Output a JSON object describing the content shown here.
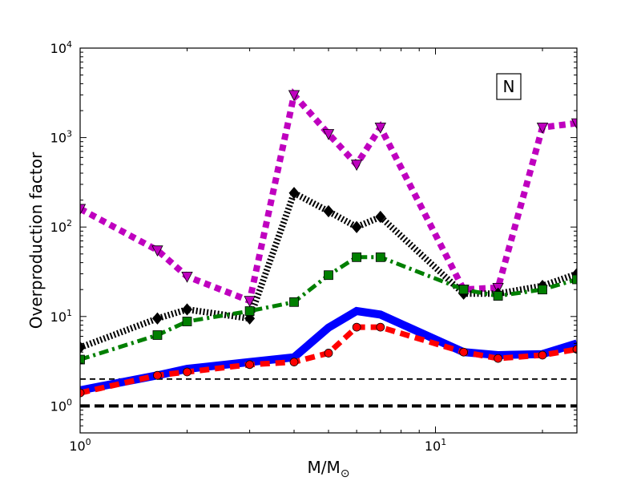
{
  "chart_data": {
    "type": "line",
    "xscale": "log",
    "yscale": "log",
    "xlim": [
      1,
      25
    ],
    "ylim": [
      0.5,
      10000
    ],
    "xlabel": "M/M",
    "xlabel_sub": "⊙",
    "ylabel": "Overproduction factor",
    "annotation": "N",
    "x_ticks": [
      {
        "value": 1,
        "base": "10",
        "exp": "0"
      },
      {
        "value": 10,
        "base": "10",
        "exp": "1"
      }
    ],
    "y_ticks": [
      {
        "value": 1,
        "base": "10",
        "exp": "0"
      },
      {
        "value": 10,
        "base": "10",
        "exp": "1"
      },
      {
        "value": 100,
        "base": "10",
        "exp": "2"
      },
      {
        "value": 1000,
        "base": "10",
        "exp": "3"
      },
      {
        "value": 10000,
        "base": "10",
        "exp": "4"
      }
    ],
    "reference_lines": [
      {
        "y": 1,
        "color": "#000000",
        "style": "thick-dashed"
      },
      {
        "y": 2,
        "color": "#000000",
        "style": "thin-dashed"
      }
    ],
    "series": [
      {
        "name": "magenta-triangles",
        "color": "#bf00bf",
        "style": "dotted",
        "marker": "triangle-down",
        "x": [
          1,
          1.65,
          2,
          3,
          4,
          5,
          6,
          7,
          12,
          15,
          20,
          25
        ],
        "y": [
          160,
          55,
          28,
          15,
          3000,
          1100,
          500,
          1300,
          20,
          21,
          1300,
          1450
        ]
      },
      {
        "name": "black-diamonds",
        "color": "#000000",
        "style": "dotted-fine",
        "marker": "diamond",
        "x": [
          1,
          1.65,
          2,
          3,
          4,
          5,
          6,
          7,
          12,
          15,
          20,
          25
        ],
        "y": [
          4.5,
          9.5,
          12,
          9.5,
          240,
          150,
          100,
          130,
          18,
          18,
          22,
          30
        ]
      },
      {
        "name": "green-squares",
        "color": "#007f00",
        "style": "dashdot",
        "marker": "square",
        "x": [
          1,
          1.65,
          2,
          3,
          4,
          5,
          6,
          7,
          12,
          15,
          20,
          25
        ],
        "y": [
          3.3,
          6.2,
          8.8,
          11.5,
          14.5,
          29,
          46,
          46,
          20,
          17,
          20,
          26
        ]
      },
      {
        "name": "blue-solid",
        "color": "#0000ff",
        "style": "solid",
        "marker": "none",
        "x": [
          1,
          1.65,
          2,
          3,
          4,
          5,
          6,
          7,
          12,
          15,
          20,
          25
        ],
        "y": [
          1.5,
          2.2,
          2.6,
          3.1,
          3.5,
          7.5,
          11.5,
          10.5,
          4.0,
          3.7,
          3.8,
          5.0
        ]
      },
      {
        "name": "red-circles",
        "color": "#ff0000",
        "style": "dashed",
        "marker": "circle",
        "x": [
          1,
          1.65,
          2,
          3,
          4,
          5,
          6,
          7,
          12,
          15,
          20,
          25
        ],
        "y": [
          1.4,
          2.2,
          2.4,
          2.9,
          3.1,
          3.9,
          7.6,
          7.6,
          4.0,
          3.4,
          3.7,
          4.3
        ]
      }
    ]
  }
}
